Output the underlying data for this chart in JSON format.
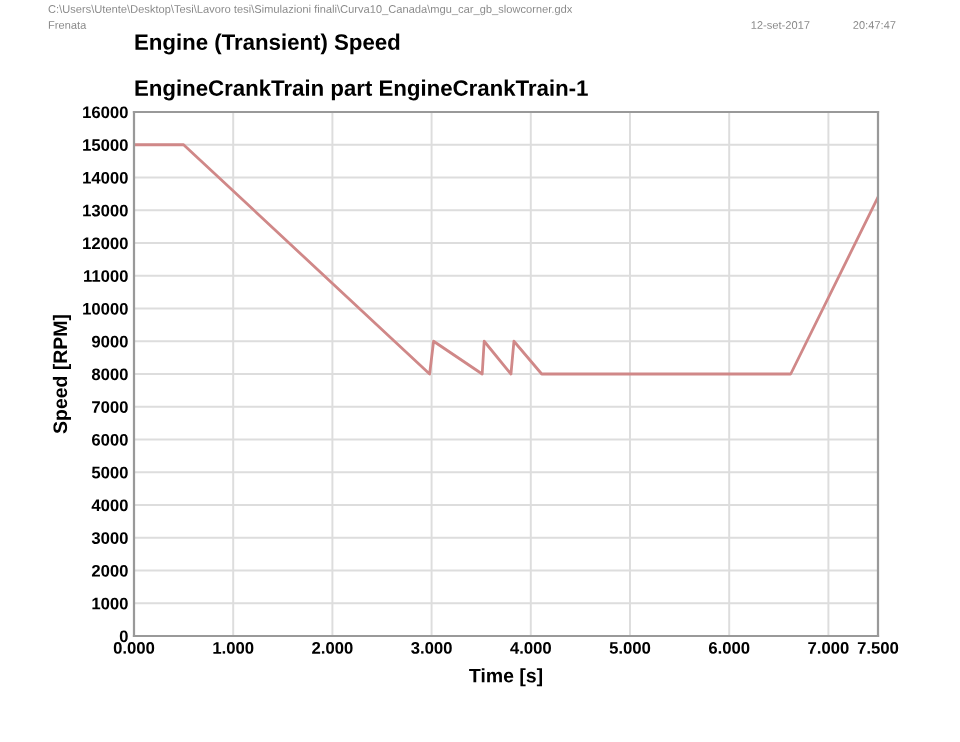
{
  "chart_data": {
    "type": "line",
    "title": "Engine (Transient) Speed",
    "subtitle": "EngineCrankTrain part EngineCrankTrain-1",
    "xlabel": "Time [s]",
    "ylabel": "Speed [RPM]",
    "annotations": [
      "C:\\Users\\Utente\\Desktop\\Tesi\\Lavoro tesi\\Simulazioni finali\\Curva10_Canada\\mgu_car_gb_slowcorner.gdx",
      "Frenata",
      "12-set-2017",
      "20:47:47"
    ],
    "series": [
      {
        "color": "#d08888",
        "x": [
          0,
          0.5,
          2.98,
          3.02,
          3.51,
          3.53,
          3.8,
          3.83,
          4.11,
          6.62,
          7.5
        ],
        "values": [
          15000,
          15000,
          8000,
          9000,
          8000,
          9000,
          8000,
          9000,
          8000,
          8000,
          13400
        ]
      }
    ],
    "xlim": [
      0,
      7.5
    ],
    "xticks": [
      {
        "value": 0,
        "label": "0.000"
      },
      {
        "value": 1,
        "label": "1.000"
      },
      {
        "value": 2,
        "label": "2.000"
      },
      {
        "value": 3,
        "label": "3.000"
      },
      {
        "value": 4,
        "label": "4.000"
      },
      {
        "value": 5,
        "label": "5.000"
      },
      {
        "value": 6,
        "label": "6.000"
      },
      {
        "value": 7,
        "label": "7.000"
      },
      {
        "value": 7.5,
        "label": "7.500"
      }
    ],
    "ylim": [
      0,
      16000
    ],
    "yticks": [
      0,
      1000,
      2000,
      3000,
      4000,
      5000,
      6000,
      7000,
      8000,
      9000,
      10000,
      11000,
      12000,
      13000,
      14000,
      15000,
      16000
    ],
    "grid": true,
    "marker": "none",
    "line_style": "solid"
  }
}
